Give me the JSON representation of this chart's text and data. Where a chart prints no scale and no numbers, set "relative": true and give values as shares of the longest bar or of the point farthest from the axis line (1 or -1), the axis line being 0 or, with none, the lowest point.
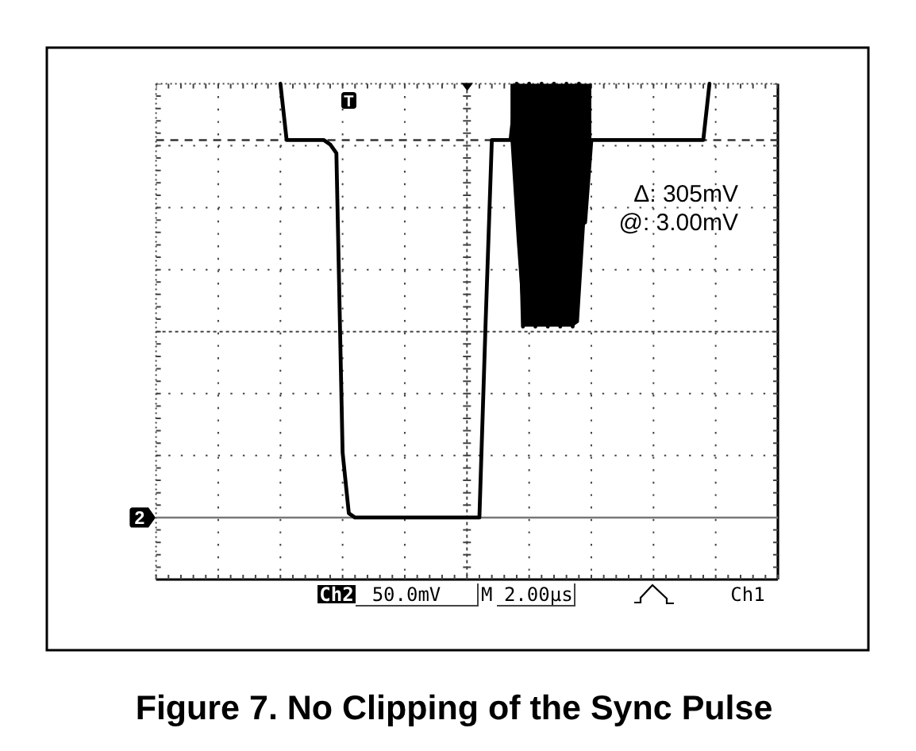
{
  "chart_data": {
    "type": "line",
    "title": "Figure 7. No Clipping of the Sync Pulse",
    "relative": true,
    "grid": true,
    "categories": [
      null,
      null,
      null,
      null,
      null,
      null,
      null,
      null,
      null,
      null,
      null,
      null,
      null,
      null,
      null,
      null,
      null,
      null,
      null,
      null,
      null,
      null,
      null,
      null,
      null,
      null,
      null,
      null,
      null,
      null,
      null,
      null,
      null,
      null,
      null,
      null,
      null,
      null,
      null,
      null,
      null,
      null,
      null,
      null,
      null,
      null,
      null,
      null,
      null,
      null,
      null,
      null,
      null,
      null,
      null,
      null,
      null,
      null,
      null,
      null,
      null,
      null,
      null,
      null,
      null,
      null,
      null,
      null,
      null,
      null,
      null,
      null,
      null,
      null,
      null,
      null,
      null,
      null,
      null,
      null,
      null,
      null,
      null,
      null,
      null,
      null,
      null,
      null,
      null,
      null,
      null,
      null,
      null,
      null,
      null,
      null,
      null,
      null,
      null,
      null,
      null
    ],
    "series": [
      {
        "color": "#000000",
        "values": [
          null,
          null,
          null,
          null,
          null,
          null,
          null,
          null,
          null,
          null,
          null,
          null,
          null,
          null,
          null,
          null,
          null,
          null,
          null,
          null,
          1,
          0.87,
          0.87,
          0.87,
          0.87,
          0.87,
          0.87,
          0.87,
          0.86,
          0.84,
          0.15,
          0.01,
          0,
          0,
          0,
          0,
          0,
          0,
          0,
          0,
          0,
          0,
          0,
          0,
          0,
          0,
          0,
          0,
          0,
          0,
          0,
          0,
          0,
          0.45,
          0.87,
          0.87,
          0.87,
          0.87,
          1,
          0.44,
          1,
          0.44,
          1,
          0.44,
          1,
          0.44,
          1,
          0.44,
          1,
          0.68,
          0.87,
          0.87,
          0.87,
          0.87,
          0.87,
          0.87,
          0.87,
          0.87,
          0.87,
          0.87,
          0.87,
          0.87,
          0.87,
          0.87,
          0.87,
          0.87,
          0.87,
          0.87,
          0.87,
          1,
          null,
          null,
          null,
          null,
          null,
          null,
          null,
          null,
          null,
          null,
          null
        ],
        "lower": [
          null,
          null,
          null,
          null,
          null,
          null,
          null,
          null,
          null,
          null,
          null,
          null,
          null,
          null,
          null,
          null,
          null,
          null,
          null,
          null,
          null,
          null,
          null,
          null,
          null,
          null,
          null,
          null,
          null,
          null,
          null,
          null,
          null,
          null,
          null,
          null,
          null,
          null,
          null,
          null,
          null,
          null,
          null,
          null,
          null,
          null,
          null,
          null,
          null,
          null,
          null,
          null,
          null,
          null,
          null,
          null,
          null,
          0.87,
          0.64,
          0.44,
          0.44,
          0.44,
          0.44,
          0.44,
          0.44,
          0.44,
          0.44,
          0.44,
          0.45,
          0.68,
          0.87,
          null,
          null,
          null,
          null,
          null,
          null,
          null,
          null,
          null,
          null,
          null,
          null,
          null,
          null,
          null,
          null,
          null,
          null,
          null,
          null,
          null,
          null,
          null,
          null,
          null,
          null,
          null,
          null,
          null,
          null
        ],
        "upper": [
          null,
          null,
          null,
          null,
          null,
          null,
          null,
          null,
          null,
          null,
          null,
          null,
          null,
          null,
          null,
          null,
          null,
          null,
          null,
          null,
          null,
          null,
          null,
          null,
          null,
          null,
          null,
          null,
          null,
          null,
          null,
          null,
          null,
          null,
          null,
          null,
          null,
          null,
          null,
          null,
          null,
          null,
          null,
          null,
          null,
          null,
          null,
          null,
          null,
          null,
          null,
          null,
          null,
          null,
          null,
          null,
          null,
          1,
          1,
          1,
          1,
          1,
          1,
          1,
          1,
          1,
          1,
          1,
          1,
          1,
          1,
          null,
          null,
          null,
          null,
          null,
          null,
          null,
          null,
          null,
          null,
          null,
          null,
          null,
          null,
          null,
          null,
          null,
          null,
          null,
          null,
          null,
          null,
          null,
          null,
          null,
          null,
          null,
          null,
          null,
          null
        ]
      }
    ],
    "ref_lines": [
      {
        "axis": "y",
        "value": 0.87,
        "line_style": "dashed",
        "color": "#333333"
      },
      {
        "axis": "y",
        "value": 0,
        "line_style": "solid",
        "color": "#777777"
      }
    ],
    "annotations": [
      "Δ: 305mV",
      "@: 3.00mV",
      "Ch2",
      "50.0mV",
      "M 2.00µs",
      "Ch1",
      "T",
      {
        "text": "2",
        "y": 0
      }
    ]
  }
}
